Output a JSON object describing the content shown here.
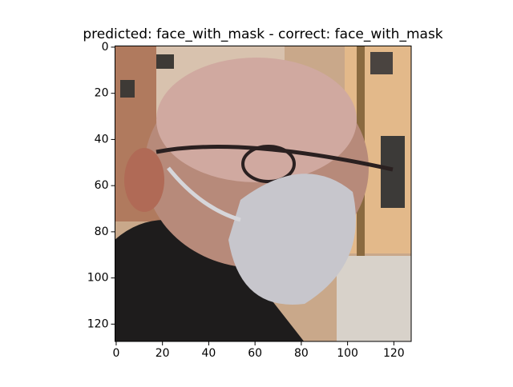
{
  "chart_data": {
    "type": "image",
    "title": "predicted: face_with_mask - correct: face_with_mask",
    "xlim": [
      -0.5,
      127.5
    ],
    "ylim": [
      127.5,
      -0.5
    ],
    "xticks": [
      0,
      20,
      40,
      60,
      80,
      100,
      120
    ],
    "yticks": [
      0,
      20,
      40,
      60,
      80,
      100,
      120
    ]
  }
}
